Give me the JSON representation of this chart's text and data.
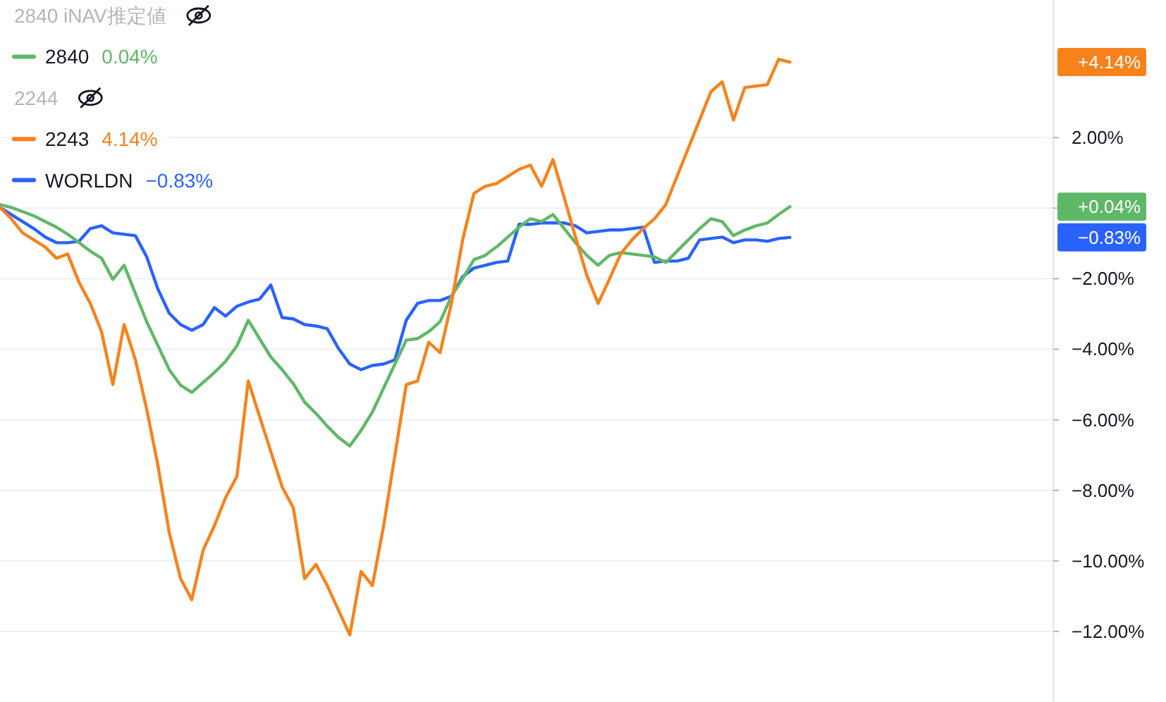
{
  "chart_data": {
    "type": "line",
    "categories": [
      null,
      null,
      null,
      null,
      null,
      null,
      null,
      null,
      null,
      null,
      null,
      null,
      null,
      null,
      null,
      null,
      null,
      null,
      null,
      null,
      null,
      null,
      null,
      null,
      null,
      null,
      null,
      null,
      null,
      null,
      null,
      null,
      null,
      null,
      null,
      null,
      null,
      null,
      null,
      null,
      null,
      null,
      null,
      null,
      null,
      null,
      null,
      null,
      null,
      null,
      null,
      null,
      null,
      null,
      null,
      null,
      null,
      null,
      null,
      null,
      null,
      null,
      null,
      null,
      null,
      null,
      null,
      null,
      null,
      null,
      null
    ],
    "series": [
      {
        "name": "2840",
        "color": "#5fb868",
        "values": [
          0.1,
          0.02,
          -0.1,
          -0.22,
          -0.38,
          -0.54,
          -0.74,
          -0.98,
          -1.22,
          -1.42,
          -2.02,
          -1.62,
          -2.42,
          -3.22,
          -3.9,
          -4.58,
          -5.02,
          -5.22,
          -4.94,
          -4.66,
          -4.34,
          -3.9,
          -3.18,
          -3.7,
          -4.22,
          -4.58,
          -4.98,
          -5.5,
          -5.82,
          -6.18,
          -6.5,
          -6.74,
          -6.3,
          -5.78,
          -5.1,
          -4.42,
          -3.74,
          -3.7,
          -3.5,
          -3.22,
          -2.5,
          -2.0,
          -1.46,
          -1.34,
          -1.1,
          -0.82,
          -0.54,
          -0.3,
          -0.38,
          -0.18,
          -0.58,
          -0.98,
          -1.34,
          -1.62,
          -1.34,
          -1.26,
          -1.3,
          -1.34,
          -1.38,
          -1.54,
          -1.22,
          -0.9,
          -0.58,
          -0.3,
          -0.38,
          -0.78,
          -0.62,
          -0.5,
          -0.42,
          -0.18,
          0.04
        ]
      },
      {
        "name": "2243",
        "color": "#f7821b",
        "values": [
          0.02,
          -0.3,
          -0.7,
          -0.9,
          -1.1,
          -1.42,
          -1.3,
          -2.1,
          -2.7,
          -3.5,
          -5.0,
          -3.3,
          -4.3,
          -5.7,
          -7.3,
          -9.2,
          -10.5,
          -11.1,
          -9.7,
          -9.0,
          -8.2,
          -7.6,
          -4.9,
          -5.9,
          -6.9,
          -7.9,
          -8.5,
          -10.5,
          -10.1,
          -10.7,
          -11.4,
          -12.1,
          -10.3,
          -10.7,
          -9.0,
          -7.0,
          -5.0,
          -4.9,
          -3.8,
          -4.1,
          -2.7,
          -0.9,
          0.42,
          0.62,
          0.7,
          0.9,
          1.1,
          1.22,
          0.62,
          1.38,
          0.3,
          -0.82,
          -1.9,
          -2.7,
          -2.02,
          -1.3,
          -0.9,
          -0.58,
          -0.3,
          0.1,
          0.9,
          1.7,
          2.5,
          3.3,
          3.58,
          2.5,
          3.42,
          3.46,
          3.5,
          4.22,
          4.14
        ]
      },
      {
        "name": "WORLDN",
        "color": "#2962ff",
        "values": [
          0.02,
          -0.18,
          -0.38,
          -0.58,
          -0.82,
          -0.98,
          -0.98,
          -0.94,
          -0.58,
          -0.5,
          -0.7,
          -0.74,
          -0.78,
          -1.38,
          -2.3,
          -2.98,
          -3.3,
          -3.46,
          -3.3,
          -2.82,
          -3.06,
          -2.78,
          -2.66,
          -2.58,
          -2.18,
          -3.1,
          -3.14,
          -3.3,
          -3.34,
          -3.42,
          -3.98,
          -4.42,
          -4.58,
          -4.46,
          -4.42,
          -4.3,
          -3.18,
          -2.7,
          -2.62,
          -2.62,
          -2.5,
          -1.94,
          -1.7,
          -1.62,
          -1.54,
          -1.5,
          -0.46,
          -0.46,
          -0.42,
          -0.42,
          -0.42,
          -0.5,
          -0.7,
          -0.66,
          -0.62,
          -0.62,
          -0.58,
          -0.54,
          -1.54,
          -1.5,
          -1.5,
          -1.42,
          -0.9,
          -0.86,
          -0.82,
          -0.98,
          -0.9,
          -0.9,
          -0.94,
          -0.86,
          -0.83
        ]
      }
    ],
    "ylim": [
      -14,
      5.9
    ],
    "yticks": [
      {
        "value": 2,
        "label": "2.00%"
      },
      {
        "value": 0,
        "label": null
      },
      {
        "value": -2,
        "label": "−2.00%"
      },
      {
        "value": -4,
        "label": "−4.00%"
      },
      {
        "value": -6,
        "label": "−6.00%"
      },
      {
        "value": -8,
        "label": "−8.00%"
      },
      {
        "value": -10,
        "label": "−10.00%"
      },
      {
        "value": -12,
        "label": "−12.00%"
      }
    ],
    "grid": "y",
    "legend": "top left",
    "annotations": [
      "2840 iNAV推定値",
      "2244",
      "0.04%",
      "4.14%",
      "−0.83%",
      "+4.14%",
      "+0.04%",
      "−0.83%"
    ]
  }
}
